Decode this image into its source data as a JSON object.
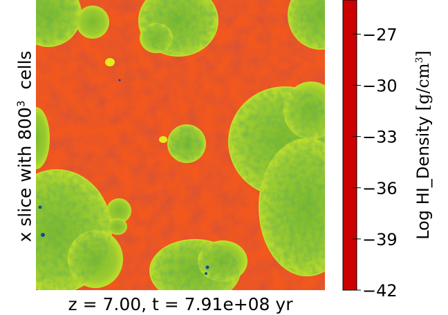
{
  "figure": {
    "ylabel": {
      "prefix": "x slice with 800",
      "sup": "3",
      "suffix": "cells"
    },
    "xlabel": "z = 7.00, t = 7.91e+08 yr",
    "colorbar": {
      "label_main": "Log HI_Density",
      "label_unit_open": "[g/cm",
      "label_unit_sup": "3",
      "label_unit_close": "]",
      "ticks": [
        "−27",
        "−30",
        "−33",
        "−36",
        "−39",
        "−42"
      ],
      "tick_values": [
        -27,
        -30,
        -33,
        -36,
        -39,
        -42
      ],
      "range": [
        -42,
        -25
      ],
      "colormap_stops": [
        "#cc0000",
        "#e8431a",
        "#f07d21",
        "#f2c218",
        "#e6f016",
        "#9fd82c",
        "#3aa83a",
        "#147a50",
        "#0b30b0",
        "#2a0f8a",
        "#5a2b8c"
      ]
    },
    "colors": {
      "neutral_background": "#f2581e",
      "ionized_bubble": "#9acb30",
      "bubble_rim": "#e8ee1c"
    }
  }
}
